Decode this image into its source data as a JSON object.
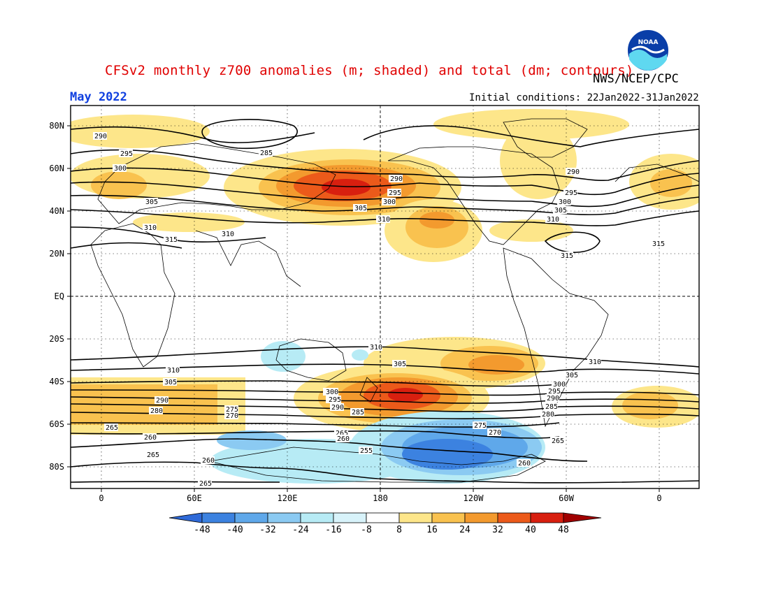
{
  "header": {
    "title": "CFSv2 monthly z700 anomalies (m; shaded) and total (dm; contours)",
    "agency": "NWS/NCEP/CPC",
    "month": "May 2022",
    "initial_conditions": "Initial conditions: 22Jan2022-31Jan2022",
    "logo_text": "NOAA"
  },
  "map": {
    "lat_ticks": [
      "80N",
      "60N",
      "40N",
      "20N",
      "EQ",
      "20S",
      "40S",
      "60S",
      "80S"
    ],
    "lon_ticks": [
      "0",
      "60E",
      "120E",
      "180",
      "120W",
      "60W",
      "0"
    ],
    "contour_labels": [
      "290",
      "295",
      "300",
      "305",
      "310",
      "315",
      "310",
      "290",
      "295",
      "300",
      "305",
      "310",
      "285",
      "290",
      "295",
      "300",
      "305",
      "310",
      "315",
      "315",
      "290",
      "295",
      "300",
      "305",
      "310",
      "310",
      "305",
      "300",
      "295",
      "290",
      "285",
      "280",
      "275",
      "270",
      "265",
      "260",
      "255",
      "265",
      "260",
      "265",
      "270",
      "275",
      "280",
      "285",
      "290",
      "295",
      "300",
      "305",
      "310",
      "260",
      "265",
      "260",
      "265"
    ],
    "colors": {
      "pos_light": "#fde68a",
      "pos_1": "#f9c24f",
      "pos_2": "#f39a2e",
      "pos_3": "#ec5a1a",
      "pos_4": "#d81f0f",
      "neg_light": "#b7ebf5",
      "neg_1": "#8bcaf2",
      "neg_2": "#5fa8ea",
      "neg_3": "#3c82e0",
      "contour": "#000000",
      "title": "#e00000",
      "month": "#1040e0"
    }
  },
  "colorbar": {
    "labels": [
      "-48",
      "-40",
      "-32",
      "-24",
      "-16",
      "-8",
      "8",
      "16",
      "24",
      "32",
      "40",
      "48"
    ],
    "colors": [
      "#2f6ad8",
      "#3c82e0",
      "#5fa8ea",
      "#8bcaf2",
      "#b7ebf5",
      "#ffffff",
      "#fde68a",
      "#f9c24f",
      "#f39a2e",
      "#ec5a1a",
      "#d81f0f",
      "#a00000"
    ]
  }
}
